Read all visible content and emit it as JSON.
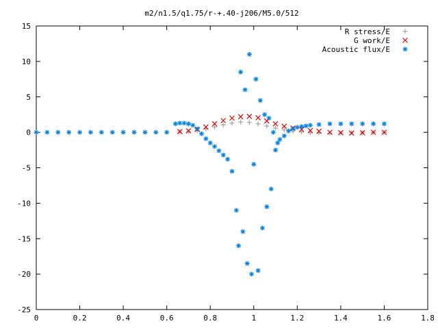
{
  "chart_data": {
    "type": "scatter",
    "title": "m2/n1.5/q1.75/r-+.40-j206/M5.0/512",
    "xlabel": "",
    "ylabel": "",
    "xlim": [
      0,
      1.8
    ],
    "ylim": [
      -25,
      15
    ],
    "x_ticks": [
      "0",
      "0.2",
      "0.4",
      "0.6",
      "0.8",
      "1",
      "1.2",
      "1.4",
      "1.6",
      "1.8"
    ],
    "y_ticks": [
      "15",
      "10",
      "5",
      "0",
      "-5",
      "-10",
      "-15",
      "-20",
      "-25"
    ],
    "grid": false,
    "legend_position": "top-right",
    "series": [
      {
        "name": "R stress/E",
        "marker": "plus",
        "color": "#a0a0a0",
        "x": [
          0.66,
          0.7,
          0.74,
          0.78,
          0.82,
          0.86,
          0.9,
          0.94,
          0.98,
          1.02,
          1.06,
          1.1,
          1.14,
          1.18,
          1.22,
          1.26,
          1.3,
          1.35,
          1.4,
          1.45,
          1.5,
          1.55,
          1.6
        ],
        "y": [
          0.05,
          0.1,
          0.25,
          0.45,
          0.75,
          1.05,
          1.3,
          1.45,
          1.4,
          1.2,
          0.9,
          0.6,
          0.35,
          0.15,
          0.05,
          -0.05,
          -0.1,
          -0.1,
          -0.1,
          -0.05,
          -0.05,
          0.0,
          0.0
        ]
      },
      {
        "name": "G work/E",
        "marker": "cross",
        "color": "#e00000",
        "x": [
          0.66,
          0.7,
          0.74,
          0.78,
          0.82,
          0.86,
          0.9,
          0.94,
          0.98,
          1.02,
          1.06,
          1.1,
          1.14,
          1.18,
          1.22,
          1.26,
          1.3,
          1.35,
          1.4,
          1.45,
          1.5,
          1.55,
          1.6
        ],
        "y": [
          0.1,
          0.2,
          0.4,
          0.75,
          1.2,
          1.65,
          2.0,
          2.2,
          2.25,
          2.05,
          1.6,
          1.2,
          0.85,
          0.6,
          0.4,
          0.25,
          0.15,
          0.0,
          -0.05,
          -0.1,
          -0.05,
          0.0,
          0.0
        ]
      },
      {
        "name": "Acoustic flux/E",
        "marker": "star",
        "color": "#0080e0",
        "x": [
          0.0,
          0.05,
          0.1,
          0.15,
          0.2,
          0.25,
          0.3,
          0.35,
          0.4,
          0.45,
          0.5,
          0.55,
          0.6,
          0.64,
          0.66,
          0.68,
          0.7,
          0.72,
          0.74,
          0.76,
          0.78,
          0.8,
          0.82,
          0.84,
          0.86,
          0.88,
          0.9,
          0.92,
          0.93,
          0.94,
          0.95,
          0.96,
          0.97,
          0.98,
          0.99,
          1.0,
          1.01,
          1.02,
          1.03,
          1.04,
          1.05,
          1.06,
          1.07,
          1.08,
          1.09,
          1.1,
          1.11,
          1.12,
          1.14,
          1.16,
          1.18,
          1.2,
          1.22,
          1.24,
          1.26,
          1.3,
          1.35,
          1.4,
          1.45,
          1.5,
          1.55,
          1.6
        ],
        "y": [
          0.0,
          0.0,
          0.0,
          0.0,
          0.0,
          0.0,
          0.0,
          0.0,
          0.0,
          0.0,
          0.0,
          0.0,
          0.0,
          1.2,
          1.3,
          1.3,
          1.2,
          1.0,
          0.5,
          -0.2,
          -0.9,
          -1.5,
          -2.0,
          -2.6,
          -3.2,
          -3.8,
          -5.5,
          -11.0,
          -16.0,
          8.5,
          -14.0,
          6.0,
          -18.5,
          11.0,
          -20.0,
          -4.5,
          7.5,
          -19.5,
          4.5,
          -13.5,
          2.5,
          -10.5,
          2.0,
          -8.0,
          0.0,
          -2.5,
          -1.5,
          -1.0,
          -0.5,
          0.2,
          0.5,
          0.7,
          0.8,
          0.9,
          1.0,
          1.1,
          1.2,
          1.2,
          1.2,
          1.2,
          1.2,
          1.2
        ]
      }
    ]
  }
}
